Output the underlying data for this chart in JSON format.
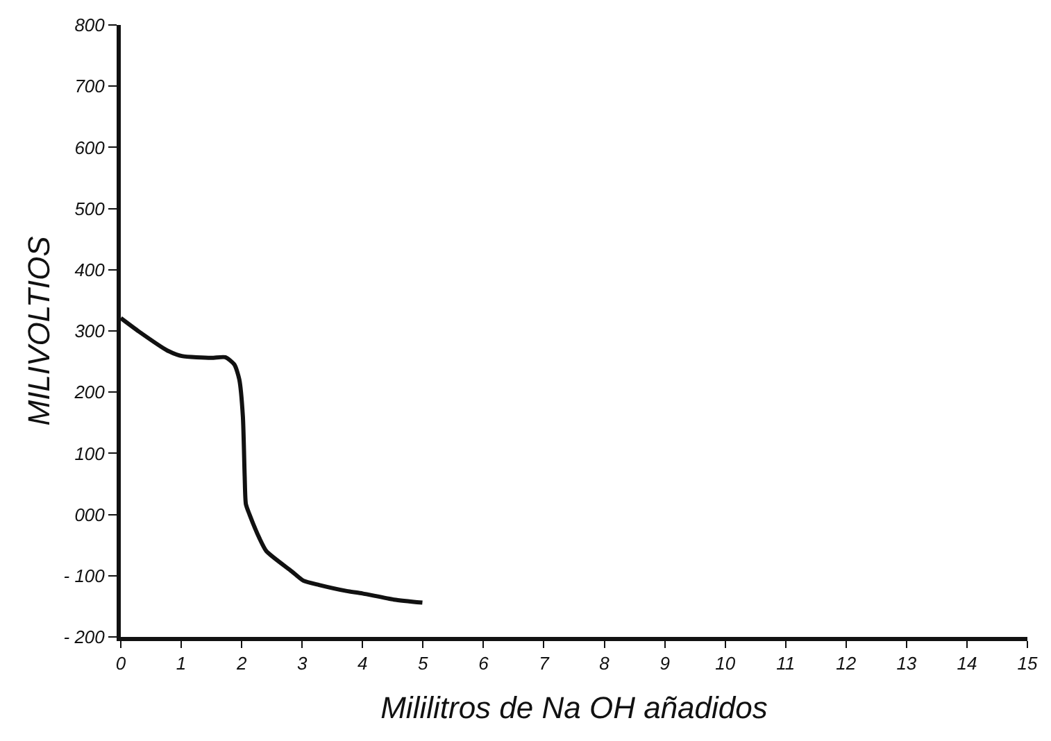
{
  "chart_data": {
    "type": "line",
    "xlabel": "Mililitros de Na OH añadidos",
    "ylabel": "MILIVOLTIOS",
    "xlim": [
      0,
      15
    ],
    "xticks": [
      0,
      1,
      2,
      3,
      4,
      5,
      6,
      7,
      8,
      9,
      10,
      11,
      12,
      13,
      14,
      15
    ],
    "ylim": [
      -200,
      800
    ],
    "yticks": [
      {
        "value": -200,
        "label": "- 200"
      },
      {
        "value": -100,
        "label": "- 100"
      },
      {
        "value": 0,
        "label": "000"
      },
      100,
      200,
      300,
      400,
      500,
      600,
      700,
      800
    ],
    "marker": "none",
    "line_style": "solid",
    "series": [
      {
        "color": "#111111",
        "x": [
          0,
          0.3,
          0.77,
          1.01,
          1.5,
          1.73,
          1.88,
          1.96,
          2.02,
          2.05,
          2.07,
          2.13,
          2.3,
          2.41,
          2.83,
          3.02,
          3.28,
          3.74,
          4.0,
          4.52,
          4.99
        ],
        "values": [
          321,
          299,
          268,
          259,
          256,
          257,
          245,
          221,
          160,
          62,
          17,
          0,
          -40,
          -60,
          -93,
          -108,
          -115,
          -125,
          -129,
          -139,
          -144
        ]
      }
    ]
  }
}
